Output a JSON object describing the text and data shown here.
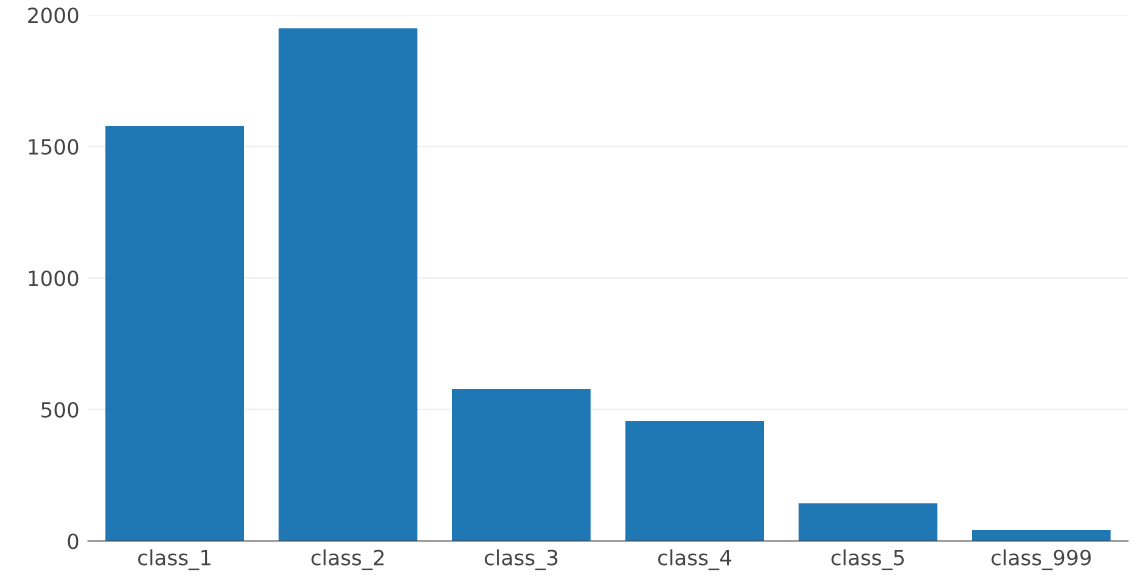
{
  "chart_data": {
    "type": "bar",
    "categories": [
      "class_1",
      "class_2",
      "class_3",
      "class_4",
      "class_5",
      "class_999"
    ],
    "values": [
      1578,
      1950,
      578,
      456,
      144,
      42
    ],
    "color": "#1f77b4",
    "ylim": [
      0,
      2000
    ],
    "yticks": [
      0,
      500,
      1000,
      1500,
      2000
    ],
    "grid": "y"
  }
}
